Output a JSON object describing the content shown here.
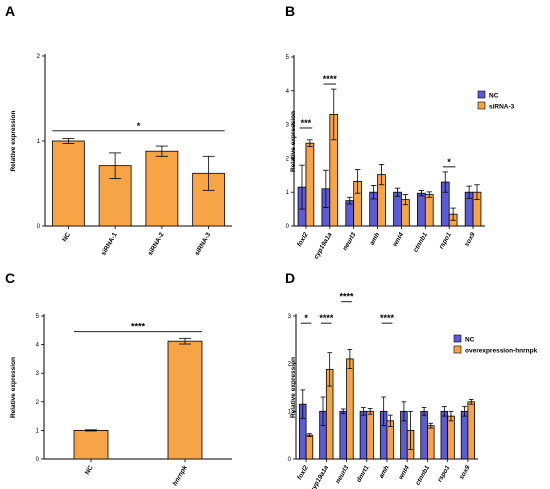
{
  "chart_data": [
    {
      "panel": "A",
      "type": "bar",
      "ylabel": "Relative expression",
      "ylim": [
        0,
        2
      ],
      "yticks": [
        0,
        1,
        2
      ],
      "categories": [
        "NC",
        "siRNA-1",
        "siRNA-2",
        "siRNA-3"
      ],
      "italic_categories": false,
      "series": [
        {
          "values": [
            1.0,
            0.71,
            0.88,
            0.62
          ],
          "errors": [
            0.03,
            0.15,
            0.06,
            0.2
          ],
          "color": "#f7a446"
        }
      ],
      "significance": [
        {
          "from": 0,
          "to": 3,
          "label": "*",
          "level": 1.12
        }
      ]
    },
    {
      "panel": "B",
      "type": "grouped-bar",
      "ylabel": "Relative expression",
      "ylim": [
        0,
        5
      ],
      "yticks": [
        0,
        1,
        2,
        3,
        4,
        5
      ],
      "categories": [
        "foxl2",
        "cyp19a1a",
        "neurl3",
        "amh",
        "wnt4",
        "ctnnb1",
        "rspo1",
        "sox9"
      ],
      "italic_categories": true,
      "legend": {
        "position": "right",
        "entries": [
          "NC",
          "siRNA-3"
        ]
      },
      "series": [
        {
          "name": "NC",
          "color": "#5b5bd6",
          "values": [
            1.15,
            1.1,
            0.75,
            1.0,
            1.0,
            0.97,
            1.3,
            1.0
          ],
          "errors": [
            0.65,
            0.55,
            0.1,
            0.2,
            0.12,
            0.08,
            0.3,
            0.18
          ]
        },
        {
          "name": "siRNA-3",
          "color": "#f7a446",
          "values": [
            2.45,
            3.3,
            1.32,
            1.52,
            0.78,
            0.93,
            0.35,
            1.0
          ],
          "errors": [
            0.1,
            0.75,
            0.35,
            0.3,
            0.15,
            0.08,
            0.18,
            0.22
          ]
        }
      ],
      "significance": [
        {
          "category": 0,
          "label": "***",
          "level": 2.9
        },
        {
          "category": 1,
          "label": "****",
          "level": 4.2
        },
        {
          "category": 6,
          "label": "*",
          "level": 1.75
        }
      ]
    },
    {
      "panel": "C",
      "type": "bar",
      "ylabel": "Relative expression",
      "ylim": [
        0,
        5
      ],
      "yticks": [
        0,
        1,
        2,
        3,
        4,
        5
      ],
      "categories": [
        "NC",
        "hnrnpk"
      ],
      "italic_categories_index": [
        1
      ],
      "series": [
        {
          "values": [
            1.0,
            4.12
          ],
          "errors": [
            0.02,
            0.1
          ],
          "color": "#f7a446"
        }
      ],
      "significance": [
        {
          "from": 0,
          "to": 1,
          "label": "****",
          "level": 4.45
        }
      ]
    },
    {
      "panel": "D",
      "type": "grouped-bar",
      "ylabel": "Relative expression",
      "ylim": [
        0,
        3
      ],
      "yticks": [
        0,
        1,
        2,
        3
      ],
      "categories": [
        "foxl2",
        "cyp19a1a",
        "neurl3",
        "dmrt1",
        "amh",
        "wnt4",
        "ctnnb1",
        "rspo1",
        "sox9"
      ],
      "italic_categories": true,
      "legend": {
        "position": "right",
        "entries": [
          "NC",
          "overexpression-hnrnpk"
        ]
      },
      "series": [
        {
          "name": "NC",
          "color": "#5b5bd6",
          "values": [
            1.15,
            1.0,
            1.0,
            1.0,
            1.0,
            1.0,
            1.0,
            1.0,
            1.0
          ],
          "errors": [
            0.3,
            0.3,
            0.05,
            0.08,
            0.3,
            0.2,
            0.08,
            0.1,
            0.1
          ]
        },
        {
          "name": "overexpression-hnrnpk",
          "color": "#f7a446",
          "values": [
            0.5,
            1.88,
            2.1,
            1.0,
            0.8,
            0.6,
            0.7,
            0.9,
            1.2
          ],
          "errors": [
            0.03,
            0.35,
            0.2,
            0.06,
            0.12,
            0.4,
            0.05,
            0.1,
            0.05
          ]
        }
      ],
      "significance": [
        {
          "category": 0,
          "label": "*",
          "level": 2.85
        },
        {
          "category": 1,
          "label": "****",
          "level": 2.85
        },
        {
          "category": 2,
          "label": "****",
          "level": 3.3
        },
        {
          "category": 4,
          "label": "****",
          "level": 2.85
        }
      ]
    }
  ]
}
